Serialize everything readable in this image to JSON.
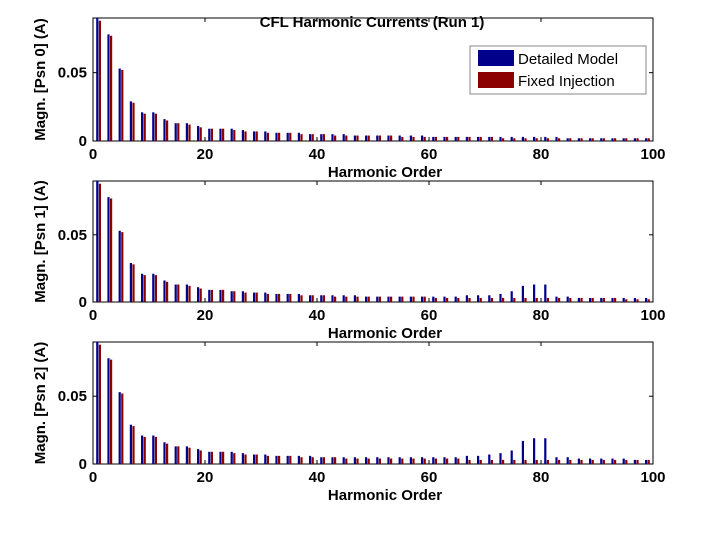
{
  "chart_data": {
    "title": "CFL Harmonic Currents (Run 1)",
    "legend": {
      "placement": "top-right",
      "entries": [
        {
          "label": "Detailed Model",
          "color": "#00008b"
        },
        {
          "label": "Fixed Injection",
          "color": "#8b0000"
        }
      ]
    },
    "panels": [
      {
        "type": "bar",
        "ylabel": "Magn. [Psn 0] (A)",
        "xlabel": "Harmonic Order",
        "xlim": [
          0,
          100
        ],
        "ylim": [
          0,
          0.09
        ],
        "xticks": [
          "0",
          "20",
          "40",
          "60",
          "80",
          "100"
        ],
        "yticks": [
          "0",
          "0.05"
        ],
        "categories": [
          1,
          3,
          5,
          7,
          9,
          11,
          13,
          15,
          17,
          19,
          21,
          23,
          25,
          27,
          29,
          31,
          33,
          35,
          37,
          39,
          41,
          43,
          45,
          47,
          49,
          51,
          53,
          55,
          57,
          59,
          61,
          63,
          65,
          67,
          69,
          71,
          73,
          75,
          77,
          79,
          81,
          83,
          85,
          87,
          89,
          91,
          93,
          95,
          97,
          99
        ],
        "series": [
          {
            "name": "Detailed Model",
            "values": [
              0.09,
              0.078,
              0.053,
              0.029,
              0.021,
              0.021,
              0.016,
              0.013,
              0.013,
              0.011,
              0.009,
              0.009,
              0.009,
              0.008,
              0.007,
              0.007,
              0.006,
              0.006,
              0.006,
              0.005,
              0.005,
              0.005,
              0.005,
              0.004,
              0.004,
              0.004,
              0.004,
              0.004,
              0.004,
              0.004,
              0.003,
              0.003,
              0.003,
              0.003,
              0.003,
              0.003,
              0.003,
              0.003,
              0.003,
              0.003,
              0.003,
              0.003,
              0.002,
              0.002,
              0.002,
              0.002,
              0.002,
              0.002,
              0.002,
              0.002
            ]
          },
          {
            "name": "Fixed Injection",
            "values": [
              0.088,
              0.077,
              0.052,
              0.028,
              0.02,
              0.02,
              0.015,
              0.013,
              0.012,
              0.01,
              0.009,
              0.009,
              0.008,
              0.007,
              0.007,
              0.006,
              0.006,
              0.006,
              0.005,
              0.005,
              0.005,
              0.004,
              0.004,
              0.004,
              0.004,
              0.004,
              0.004,
              0.003,
              0.003,
              0.003,
              0.003,
              0.003,
              0.003,
              0.003,
              0.003,
              0.003,
              0.002,
              0.002,
              0.002,
              0.002,
              0.002,
              0.002,
              0.002,
              0.002,
              0.002,
              0.002,
              0.002,
              0.002,
              0.002,
              0.002
            ]
          }
        ]
      },
      {
        "type": "bar",
        "ylabel": "Magn. [Psn 1] (A)",
        "xlabel": "Harmonic Order",
        "xlim": [
          0,
          100
        ],
        "ylim": [
          0,
          0.09
        ],
        "xticks": [
          "0",
          "20",
          "40",
          "60",
          "80",
          "100"
        ],
        "yticks": [
          "0",
          "0.05"
        ],
        "categories": [
          1,
          3,
          5,
          7,
          9,
          11,
          13,
          15,
          17,
          19,
          21,
          23,
          25,
          27,
          29,
          31,
          33,
          35,
          37,
          39,
          41,
          43,
          45,
          47,
          49,
          51,
          53,
          55,
          57,
          59,
          61,
          63,
          65,
          67,
          69,
          71,
          73,
          75,
          77,
          79,
          81,
          83,
          85,
          87,
          89,
          91,
          93,
          95,
          97,
          99
        ],
        "series": [
          {
            "name": "Detailed Model",
            "values": [
              0.09,
              0.078,
              0.053,
              0.029,
              0.021,
              0.021,
              0.016,
              0.013,
              0.013,
              0.011,
              0.009,
              0.009,
              0.008,
              0.008,
              0.007,
              0.007,
              0.006,
              0.006,
              0.006,
              0.005,
              0.005,
              0.005,
              0.005,
              0.005,
              0.004,
              0.004,
              0.004,
              0.004,
              0.004,
              0.004,
              0.004,
              0.004,
              0.004,
              0.005,
              0.005,
              0.005,
              0.006,
              0.008,
              0.012,
              0.013,
              0.013,
              0.004,
              0.004,
              0.003,
              0.003,
              0.003,
              0.003,
              0.003,
              0.003,
              0.003
            ]
          },
          {
            "name": "Fixed Injection",
            "values": [
              0.088,
              0.077,
              0.052,
              0.028,
              0.02,
              0.02,
              0.015,
              0.013,
              0.012,
              0.01,
              0.009,
              0.009,
              0.008,
              0.007,
              0.007,
              0.006,
              0.006,
              0.006,
              0.005,
              0.005,
              0.005,
              0.004,
              0.004,
              0.004,
              0.004,
              0.004,
              0.004,
              0.004,
              0.004,
              0.004,
              0.003,
              0.003,
              0.003,
              0.003,
              0.003,
              0.003,
              0.003,
              0.003,
              0.003,
              0.003,
              0.003,
              0.003,
              0.003,
              0.003,
              0.003,
              0.003,
              0.003,
              0.002,
              0.002,
              0.002
            ]
          }
        ]
      },
      {
        "type": "bar",
        "ylabel": "Magn. [Psn 2] (A)",
        "xlabel": "Harmonic Order",
        "xlim": [
          0,
          100
        ],
        "ylim": [
          0,
          0.09
        ],
        "xticks": [
          "0",
          "20",
          "40",
          "60",
          "80",
          "100"
        ],
        "yticks": [
          "0",
          "0.05"
        ],
        "categories": [
          1,
          3,
          5,
          7,
          9,
          11,
          13,
          15,
          17,
          19,
          21,
          23,
          25,
          27,
          29,
          31,
          33,
          35,
          37,
          39,
          41,
          43,
          45,
          47,
          49,
          51,
          53,
          55,
          57,
          59,
          61,
          63,
          65,
          67,
          69,
          71,
          73,
          75,
          77,
          79,
          81,
          83,
          85,
          87,
          89,
          91,
          93,
          95,
          97,
          99
        ],
        "series": [
          {
            "name": "Detailed Model",
            "values": [
              0.09,
              0.078,
              0.053,
              0.029,
              0.021,
              0.021,
              0.016,
              0.013,
              0.013,
              0.011,
              0.009,
              0.009,
              0.009,
              0.008,
              0.007,
              0.007,
              0.006,
              0.006,
              0.006,
              0.006,
              0.005,
              0.005,
              0.005,
              0.005,
              0.005,
              0.005,
              0.005,
              0.005,
              0.005,
              0.005,
              0.005,
              0.005,
              0.005,
              0.006,
              0.006,
              0.007,
              0.008,
              0.01,
              0.017,
              0.019,
              0.019,
              0.005,
              0.005,
              0.004,
              0.004,
              0.004,
              0.004,
              0.004,
              0.003,
              0.003
            ]
          },
          {
            "name": "Fixed Injection",
            "values": [
              0.088,
              0.077,
              0.052,
              0.028,
              0.02,
              0.02,
              0.015,
              0.013,
              0.012,
              0.01,
              0.009,
              0.009,
              0.008,
              0.007,
              0.007,
              0.006,
              0.006,
              0.006,
              0.005,
              0.005,
              0.005,
              0.005,
              0.004,
              0.004,
              0.004,
              0.004,
              0.004,
              0.004,
              0.004,
              0.004,
              0.004,
              0.004,
              0.004,
              0.003,
              0.003,
              0.003,
              0.003,
              0.003,
              0.003,
              0.003,
              0.003,
              0.003,
              0.003,
              0.003,
              0.003,
              0.003,
              0.003,
              0.003,
              0.003,
              0.003
            ]
          }
        ]
      }
    ]
  }
}
